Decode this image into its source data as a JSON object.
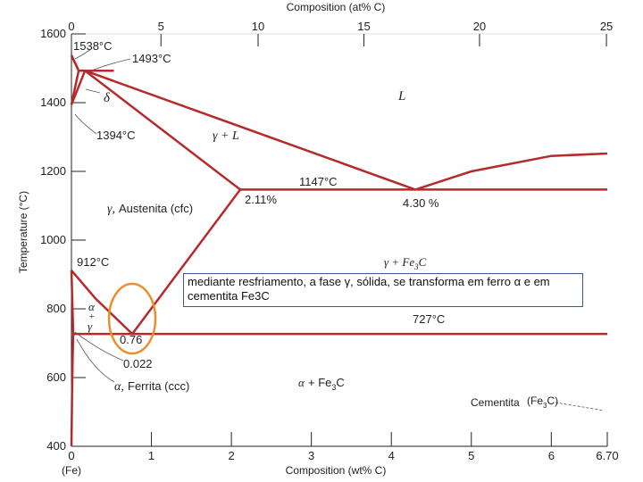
{
  "chart_data": {
    "type": "line",
    "title": "",
    "xlabel_top": "Composition (at% C)",
    "xlabel": "Composition (wt% C)",
    "ylabel": "Temperature (°C)",
    "xlim": [
      0,
      6.7
    ],
    "ylim": [
      400,
      1600
    ],
    "x_ticks": [
      "0",
      "1",
      "2",
      "3",
      "4",
      "5",
      "6",
      "6.70"
    ],
    "x_origin_label": "(Fe)",
    "y_ticks": [
      "400",
      "600",
      "800",
      "1000",
      "1200",
      "1400",
      "1600"
    ],
    "top_ticks": [
      "0",
      "5",
      "10",
      "15",
      "20",
      "25"
    ],
    "phase_boundaries": [
      {
        "name": "liquidus-delta",
        "points": [
          [
            0,
            1538
          ],
          [
            0.09,
            1493
          ]
        ]
      },
      {
        "name": "liquidus-gamma",
        "points": [
          [
            0.17,
            1493
          ],
          [
            4.3,
            1147
          ]
        ]
      },
      {
        "name": "liquidus-cementite",
        "points": [
          [
            4.3,
            1147
          ],
          [
            5.0,
            1200
          ],
          [
            6.0,
            1245
          ],
          [
            6.7,
            1252
          ]
        ]
      },
      {
        "name": "delta-solidus",
        "points": [
          [
            0,
            1538
          ],
          [
            0.09,
            1493
          ]
        ]
      },
      {
        "name": "peritectic-line",
        "points": [
          [
            0.09,
            1493
          ],
          [
            0.53,
            1493
          ]
        ]
      },
      {
        "name": "delta-gamma-upper",
        "points": [
          [
            0.09,
            1493
          ],
          [
            0.05,
            1450
          ],
          [
            0,
            1394
          ]
        ]
      },
      {
        "name": "delta-gamma-lower",
        "points": [
          [
            0.17,
            1493
          ],
          [
            0,
            1394
          ]
        ]
      },
      {
        "name": "austenite-solidus",
        "points": [
          [
            0.17,
            1493
          ],
          [
            2.11,
            1147
          ]
        ]
      },
      {
        "name": "eutectic-line",
        "points": [
          [
            2.11,
            1147
          ],
          [
            6.7,
            1147
          ]
        ]
      },
      {
        "name": "acm-line",
        "points": [
          [
            2.11,
            1147
          ],
          [
            0.76,
            727
          ]
        ]
      },
      {
        "name": "a3-line",
        "points": [
          [
            0,
            912
          ],
          [
            0.3,
            830
          ],
          [
            0.76,
            727
          ]
        ]
      },
      {
        "name": "eutectoid-line",
        "points": [
          [
            0.022,
            727
          ],
          [
            6.7,
            727
          ]
        ]
      },
      {
        "name": "alpha-solvus-upper",
        "points": [
          [
            0,
            912
          ],
          [
            0.022,
            727
          ]
        ]
      },
      {
        "name": "alpha-solvus",
        "points": [
          [
            0.022,
            727
          ],
          [
            0.015,
            650
          ],
          [
            0.008,
            550
          ],
          [
            0,
            400
          ]
        ]
      }
    ],
    "annotations": [
      {
        "text": "1538°C"
      },
      {
        "text": "1493°C"
      },
      {
        "text": "1394°C"
      },
      {
        "text": "1147°C"
      },
      {
        "text": "912°C"
      },
      {
        "text": "727°C"
      },
      {
        "text": "2.11%"
      },
      {
        "text": "4.30 %"
      },
      {
        "text": "0.76"
      },
      {
        "text": "0.022"
      }
    ],
    "phase_labels": {
      "L": "L",
      "delta": "δ",
      "gamma_L": "γ + L",
      "austenite_symbol": "γ,",
      "austenite": "Austenita (cfc)",
      "gamma_fe3c": "γ + Fe",
      "gamma_fe3c_sub": "3",
      "gamma_fe3c_end": "C",
      "alpha_gamma_top": "α",
      "alpha_gamma_plus": "+",
      "alpha_gamma_bottom": "γ",
      "ferrite_symbol": "α,",
      "ferrite": "Ferrita (ccc)",
      "alpha_fe3c_symbol": "α",
      "alpha_fe3c": "+ Fe",
      "alpha_fe3c_sub": "3",
      "alpha_fe3c_end": "C",
      "cementite": "Cementita",
      "cementite_formula": "(Fe",
      "cementite_formula_sub": "3",
      "cementite_formula_end": "C)"
    },
    "colors": {
      "phase_line": "#b52a2a",
      "axis": "#222222",
      "highlight_circle": "#e8902e",
      "callout_border": "#3a5a8c"
    }
  },
  "callout": {
    "text": "mediante resfriamento, a fase γ, sólida, se transforma em ferro α e em cementita Fe3C"
  }
}
